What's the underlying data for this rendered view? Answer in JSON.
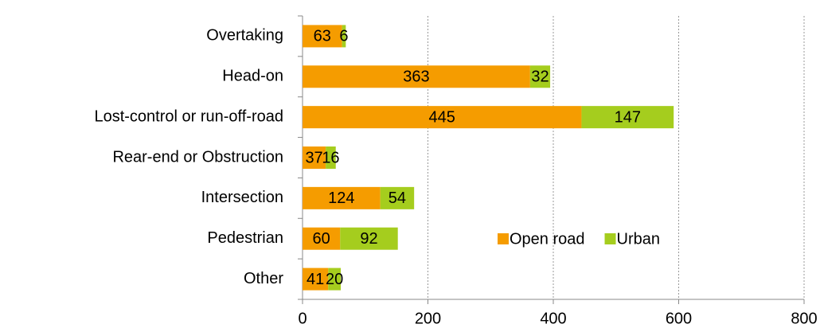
{
  "chart_data": {
    "type": "bar",
    "orientation": "horizontal",
    "stacked": true,
    "categories": [
      "Overtaking",
      "Head-on",
      "Lost-control or run-off-road",
      "Rear-end or Obstruction",
      "Intersection",
      "Pedestrian",
      "Other"
    ],
    "series": [
      {
        "name": "Open road",
        "color": "#f59c00",
        "values": [
          63,
          363,
          445,
          37,
          124,
          60,
          41
        ]
      },
      {
        "name": "Urban",
        "color": "#a5cd1e",
        "values": [
          6,
          32,
          147,
          16,
          54,
          92,
          20
        ]
      }
    ],
    "xlim": [
      0,
      800
    ],
    "xticks": [
      0,
      200,
      400,
      600,
      800
    ],
    "grid": true,
    "legend": "lower-center"
  }
}
